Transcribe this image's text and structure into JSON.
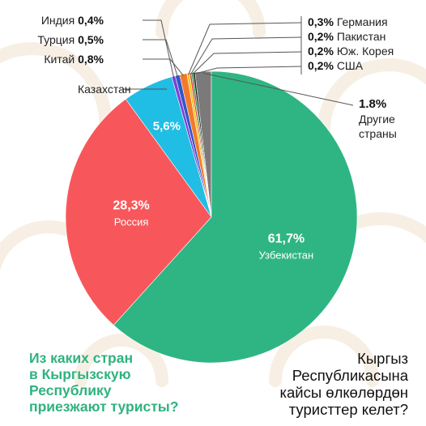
{
  "question_ru": "Из каких стран\nв Кыргызскую\nРеспублику\nприезжают туристы?",
  "question_kg": "Кыргыз\nРеспубликасына\nкайсы өлкөлөрдөн\nтуристтер келет?",
  "colors": {
    "uzbekistan": "#2fb584",
    "russia": "#f7575b",
    "kazakhstan": "#20bde4",
    "india": "#7b3fd6",
    "turkey": "#3354c8",
    "china": "#f27a2a",
    "germany": "#f2c318",
    "pakistan": "#e03838",
    "korea": "#2d8c3f",
    "usa": "#111111",
    "other": "#7a7a7a",
    "question": "#2fb27f"
  },
  "chart_data": {
    "type": "pie",
    "slices": [
      {
        "key": "uzbekistan",
        "label": "Узбекистан",
        "value": 61.7,
        "value_label": "61,7%"
      },
      {
        "key": "russia",
        "label": "Россия",
        "value": 28.3,
        "value_label": "28,3%"
      },
      {
        "key": "kazakhstan",
        "label": "Казахстан",
        "value": 5.6,
        "value_label": "5,6%"
      },
      {
        "key": "india",
        "label": "Индия",
        "value": 0.4,
        "value_label": "0,4%"
      },
      {
        "key": "turkey",
        "label": "Турция",
        "value": 0.5,
        "value_label": "0,5%"
      },
      {
        "key": "china",
        "label": "Китай",
        "value": 0.8,
        "value_label": "0,8%"
      },
      {
        "key": "germany",
        "label": "Германия",
        "value": 0.3,
        "value_label": "0,3%"
      },
      {
        "key": "pakistan",
        "label": "Пакистан",
        "value": 0.2,
        "value_label": "0,2%"
      },
      {
        "key": "korea",
        "label": "Юж. Корея",
        "value": 0.2,
        "value_label": "0,2%"
      },
      {
        "key": "usa",
        "label": "США",
        "value": 0.2,
        "value_label": "0,2%"
      },
      {
        "key": "other",
        "label": "Другие страны",
        "value": 1.8,
        "value_label": "1.8%"
      }
    ]
  }
}
